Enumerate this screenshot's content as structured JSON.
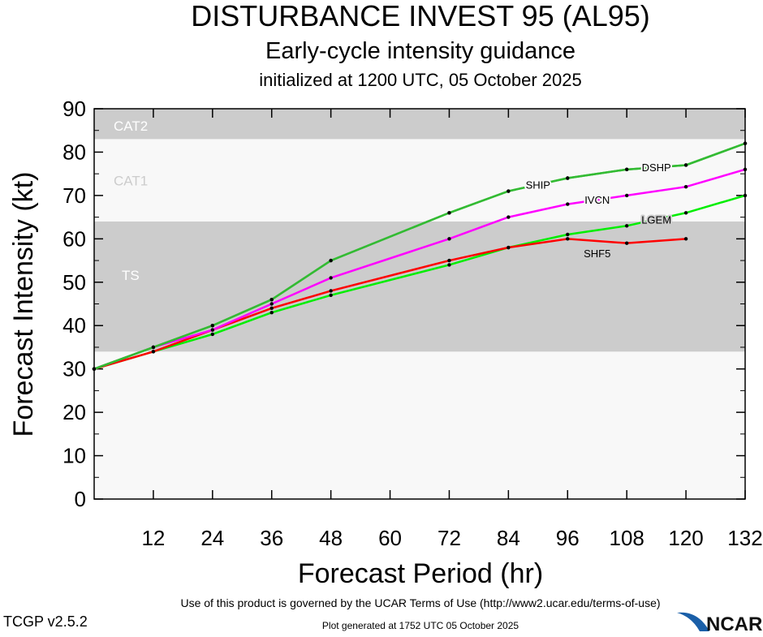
{
  "header": {
    "title": "DISTURBANCE INVEST 95 (AL95)",
    "subtitle": "Early-cycle intensity guidance",
    "init": "initialized at 1200 UTC, 05 October 2025"
  },
  "footer": {
    "terms": "Use of this product is governed by the UCAR Terms of Use (http://www2.ucar.edu/terms-of-use)",
    "version": "TCGP v2.5.2",
    "generated": "Plot generated at 1752 UTC   05 October 2025",
    "logo": "NCAR"
  },
  "chart_data": {
    "type": "line",
    "title": "DISTURBANCE INVEST 95 (AL95)",
    "xlabel": "Forecast Period (hr)",
    "ylabel": "Forecast Intensity (kt)",
    "xlim": [
      0,
      132
    ],
    "ylim": [
      0,
      90
    ],
    "xticks": [
      12,
      24,
      36,
      48,
      60,
      72,
      84,
      96,
      108,
      120,
      132
    ],
    "yticks": [
      0,
      10,
      20,
      30,
      40,
      50,
      60,
      70,
      80,
      90
    ],
    "grid": false,
    "bands": [
      {
        "name": "TS",
        "from": 34,
        "to": 64,
        "color": "#cccccc"
      },
      {
        "name": "CAT1",
        "from": 64,
        "to": 83,
        "color": "#f8f8f8"
      },
      {
        "name": "CAT2",
        "from": 83,
        "to": 96,
        "color": "#cccccc"
      }
    ],
    "below_band_color": "#f8f8f8",
    "series": [
      {
        "name": "SHIP",
        "color": "#33bb33",
        "x": [
          0,
          12,
          24,
          36,
          48,
          72,
          84,
          96,
          108,
          120,
          132
        ],
        "values": [
          30,
          35,
          40,
          46,
          55,
          66,
          71,
          74,
          76,
          77,
          82
        ]
      },
      {
        "name": "DSHP",
        "color": "#33bb33",
        "x": [
          0,
          12,
          24,
          36,
          48,
          72,
          84,
          96,
          108,
          120,
          132
        ],
        "values": [
          30,
          35,
          40,
          46,
          55,
          66,
          71,
          74,
          76,
          77,
          82
        ]
      },
      {
        "name": "IVCN",
        "color": "#ff00ff",
        "x": [
          0,
          12,
          24,
          36,
          48,
          72,
          84,
          96,
          108,
          120,
          132
        ],
        "values": [
          30,
          35,
          39,
          45,
          51,
          60,
          65,
          68,
          70,
          72,
          76
        ]
      },
      {
        "name": "LGEM",
        "color": "#00ee00",
        "x": [
          0,
          12,
          24,
          36,
          48,
          72,
          84,
          96,
          108,
          120,
          132
        ],
        "values": [
          30,
          34,
          38,
          43,
          47,
          54,
          58,
          61,
          63,
          66,
          70
        ]
      },
      {
        "name": "SHF5",
        "color": "#ff0000",
        "x": [
          0,
          12,
          24,
          36,
          48,
          72,
          84,
          96,
          108,
          120
        ],
        "values": [
          30,
          34,
          39,
          44,
          48,
          55,
          58,
          60,
          59,
          60
        ]
      }
    ]
  }
}
